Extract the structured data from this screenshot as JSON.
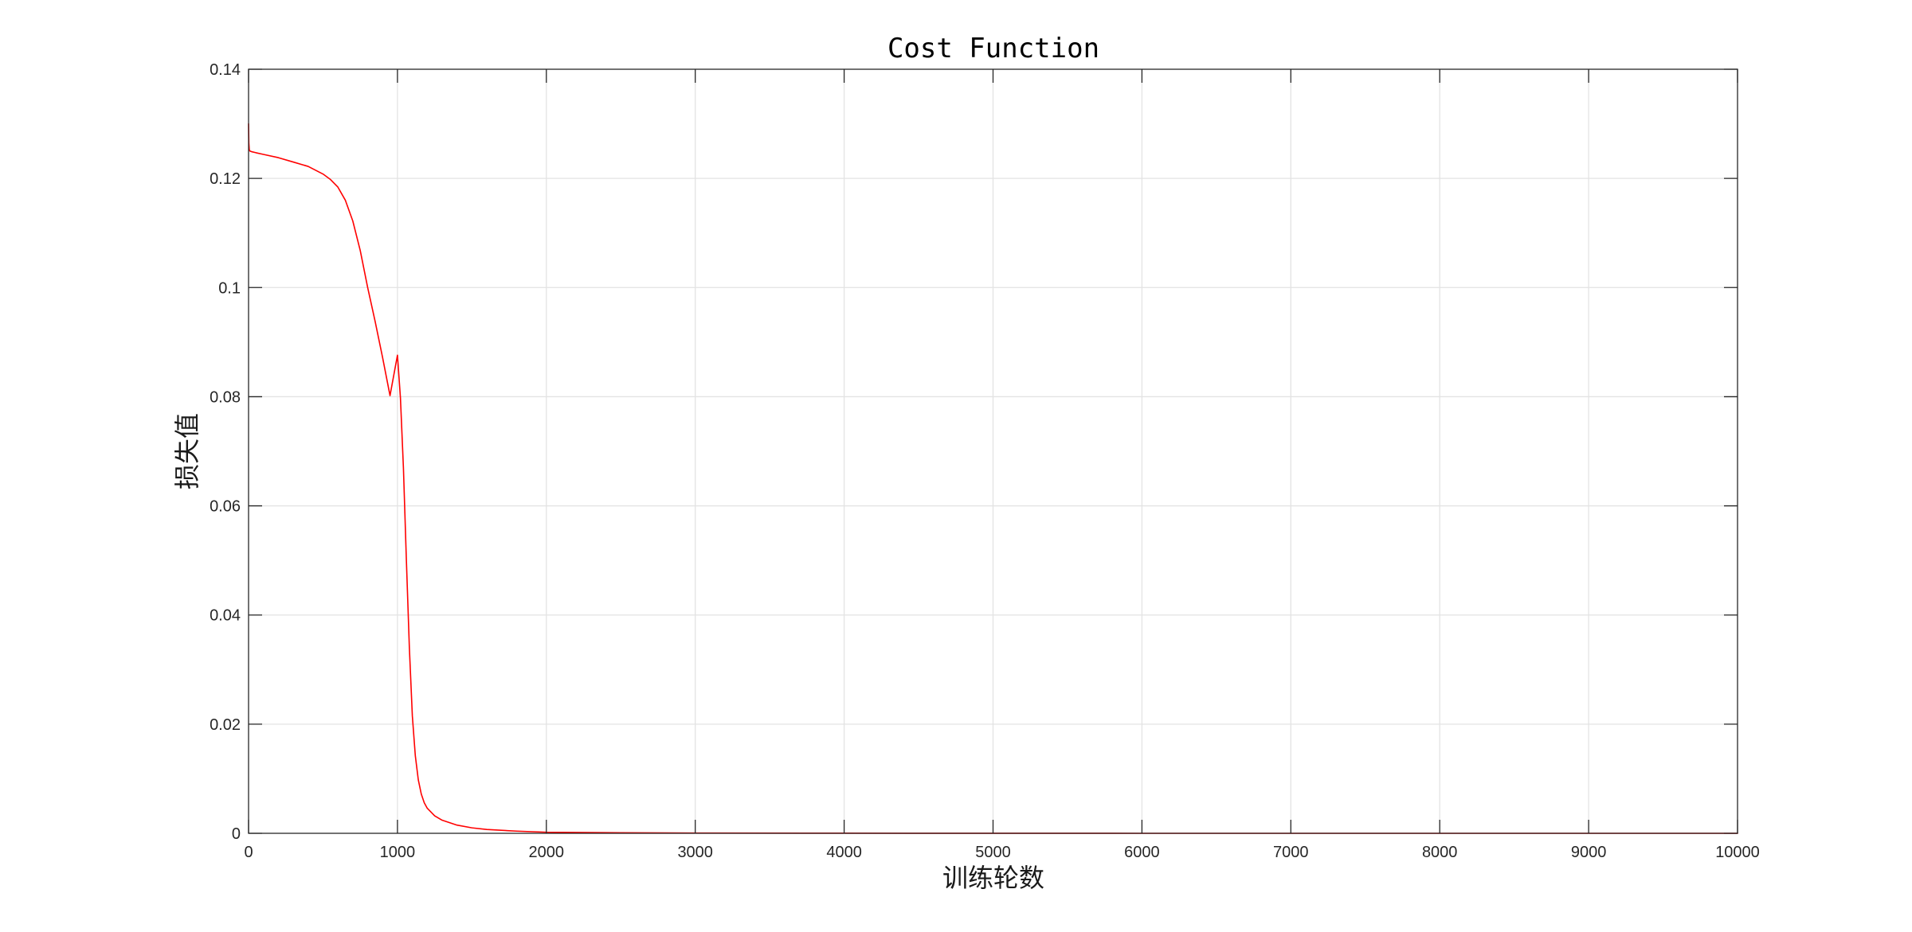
{
  "chart_data": {
    "type": "line",
    "title": "Cost Function",
    "xlabel": "训练轮数",
    "ylabel": "损失值",
    "xlim": [
      0,
      10000
    ],
    "ylim": [
      0,
      0.14
    ],
    "xticks": [
      0,
      1000,
      2000,
      3000,
      4000,
      5000,
      6000,
      7000,
      8000,
      9000,
      10000
    ],
    "xtick_labels": [
      "0",
      "1000",
      "2000",
      "3000",
      "4000",
      "5000",
      "6000",
      "7000",
      "8000",
      "9000",
      "10000"
    ],
    "yticks": [
      0,
      0.02,
      0.04,
      0.06,
      0.08,
      0.1,
      0.12,
      0.14
    ],
    "ytick_labels": [
      "0",
      "0.02",
      "0.04",
      "0.06",
      "0.08",
      "0.1",
      "0.12",
      "0.14"
    ],
    "grid": true,
    "series": [
      {
        "color": "#ff0000",
        "x": [
          0,
          2,
          5,
          10,
          20,
          50,
          100,
          200,
          300,
          400,
          500,
          550,
          600,
          650,
          700,
          750,
          800,
          850,
          900,
          950,
          1000,
          1020,
          1040,
          1060,
          1080,
          1100,
          1120,
          1140,
          1160,
          1180,
          1200,
          1250,
          1300,
          1400,
          1500,
          1600,
          1800,
          2000,
          2500,
          3000,
          4000,
          5000,
          6000,
          7000,
          8000,
          9000,
          10000
        ],
        "y": [
          0.13,
          0.1265,
          0.1252,
          0.125,
          0.1249,
          0.1247,
          0.1244,
          0.1238,
          0.123,
          0.1222,
          0.1208,
          0.1198,
          0.1184,
          0.116,
          0.1122,
          0.1068,
          0.1,
          0.0938,
          0.0872,
          0.0802,
          0.0876,
          0.0798,
          0.067,
          0.05,
          0.034,
          0.0215,
          0.0142,
          0.0098,
          0.0072,
          0.0056,
          0.0046,
          0.0032,
          0.0024,
          0.0015,
          0.001,
          0.0007,
          0.0004,
          0.0002,
          0.0001,
          5e-05,
          2e-05,
          1e-05,
          0,
          0,
          0,
          0,
          0
        ]
      }
    ]
  }
}
